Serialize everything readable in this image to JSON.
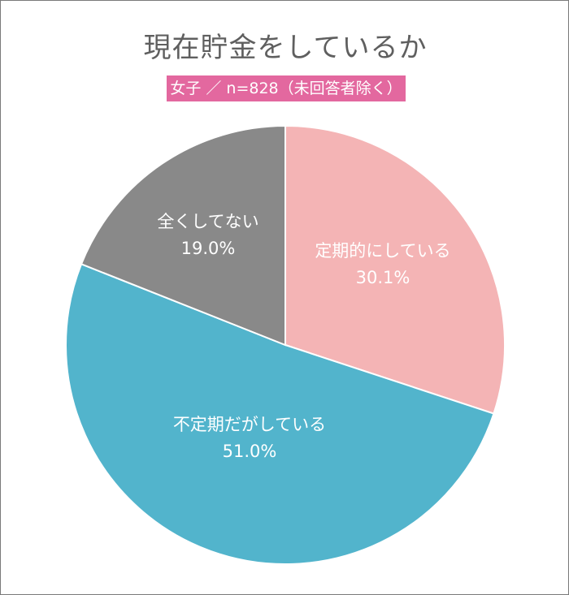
{
  "chart_data": {
    "type": "pie",
    "title": "現在貯金をしているか",
    "subtitle": "女子 ／ n=828（未回答者除く）",
    "start": "top",
    "direction": "clockwise",
    "slices": [
      {
        "label": "定期的にしている",
        "value": 30.1,
        "value_label": "30.1%",
        "color": "#f4b4b5"
      },
      {
        "label": "不定期だがしている",
        "value": 51.0,
        "value_label": "51.0%",
        "color": "#52b4cc"
      },
      {
        "label": "全くしてない",
        "value": 19.0,
        "value_label": "19.0%",
        "color": "#898989"
      }
    ],
    "colors": {
      "badge": "#e3689f",
      "title": "#5f5f5f"
    }
  }
}
